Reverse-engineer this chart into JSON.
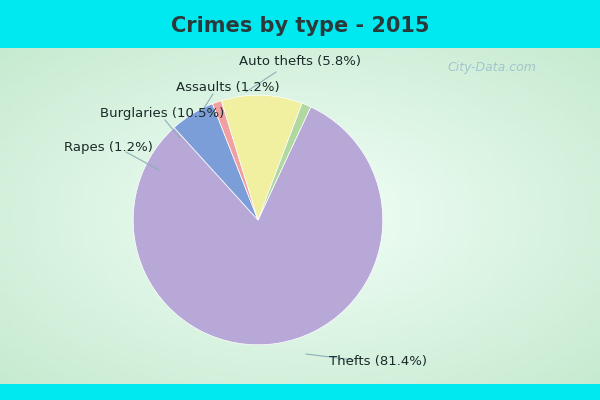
{
  "title": "Crimes by type - 2015",
  "labels": [
    "Thefts",
    "Auto thefts",
    "Assaults",
    "Burglaries",
    "Rapes"
  ],
  "values": [
    81.4,
    5.8,
    1.2,
    10.5,
    1.2
  ],
  "colors": [
    "#b8a8d8",
    "#7b9ed9",
    "#f0a0a0",
    "#f0f0a0",
    "#b0d8a0"
  ],
  "label_texts": [
    "Thefts (81.4%)",
    "Auto thefts (5.8%)",
    "Assaults (1.2%)",
    "Burglaries (10.5%)",
    "Rapes (1.2%)"
  ],
  "cyan_color": "#00e8f0",
  "title_color": "#2a3a3a",
  "title_fontsize": 15,
  "label_fontsize": 9.5,
  "watermark_text": "City-Data.com",
  "watermark_color": "#a0c0cc",
  "watermark_fontsize": 9
}
